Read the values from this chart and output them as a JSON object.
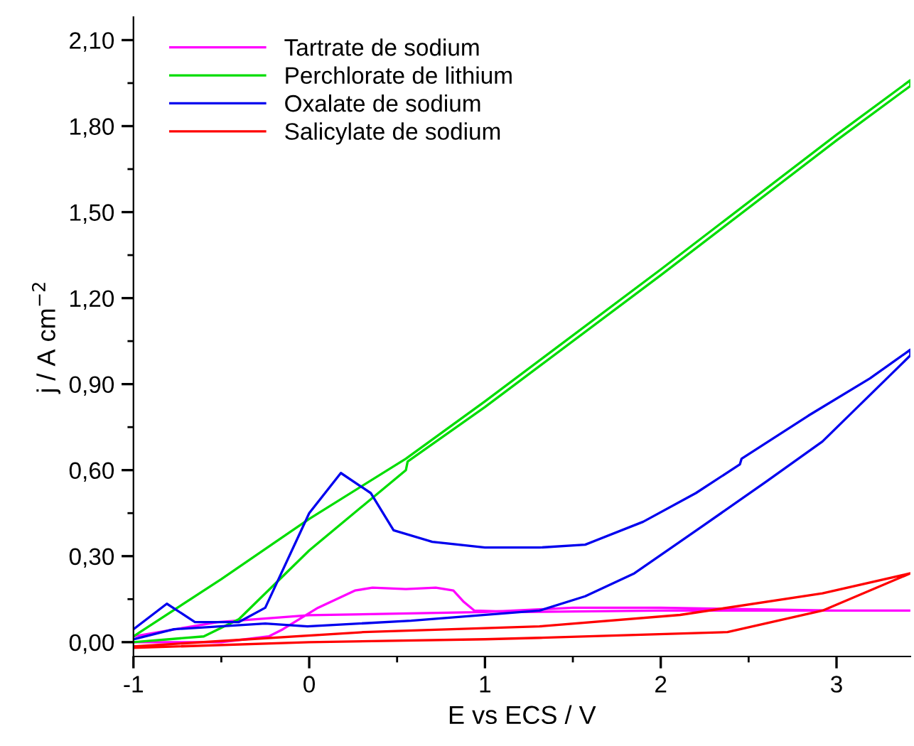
{
  "chart_data": {
    "type": "line",
    "xlabel": "E vs ECS / V",
    "ylabel": "j / A cm$^{−2}$",
    "xlim": [
      -1,
      3.42
    ],
    "ylim": [
      -0.05,
      2.18
    ],
    "xticks": [
      -1,
      0,
      1,
      2,
      3
    ],
    "yticks": [
      {
        "value": 0,
        "label": "0,00"
      },
      {
        "value": 0.3,
        "label": "0,30"
      },
      {
        "value": 0.6,
        "label": "0,60"
      },
      {
        "value": 0.9,
        "label": "0,90"
      },
      {
        "value": 1.2,
        "label": "1,20"
      },
      {
        "value": 1.5,
        "label": "1,50"
      },
      {
        "value": 1.8,
        "label": "1,80"
      },
      {
        "value": 2.1,
        "label": "2,10"
      }
    ],
    "grid": false,
    "legend": "top left",
    "marker": "none",
    "line_style": "solid",
    "series": [
      {
        "name": "Tartrate de sodium",
        "color": "#ff00ff",
        "x": [
          -1,
          -0.5,
          -0.23,
          -0.15,
          0.05,
          0.26,
          0.36,
          0.55,
          0.72,
          0.82,
          0.88,
          0.94,
          1.2,
          2,
          3,
          3.42,
          3.42,
          3,
          2,
          1.5,
          1,
          0,
          -0.52,
          -1
        ],
        "values": [
          0,
          0,
          0.02,
          0.045,
          0.12,
          0.18,
          0.19,
          0.185,
          0.19,
          0.18,
          0.14,
          0.11,
          0.105,
          0.11,
          0.11,
          0.11,
          0.11,
          0.11,
          0.12,
          0.12,
          0.105,
          0.094,
          0.07,
          0.02
        ]
      },
      {
        "name": "Perchlorate de lithium",
        "color": "#00dd00",
        "x": [
          -1,
          -0.6,
          -0.4,
          0,
          0.55,
          0.56,
          1,
          2,
          3,
          3.42,
          3.42,
          3,
          2,
          1,
          0.55,
          0,
          -0.5,
          -1
        ],
        "values": [
          0,
          0.02,
          0.08,
          0.32,
          0.6,
          0.63,
          0.82,
          1.28,
          1.75,
          1.94,
          1.96,
          1.77,
          1.3,
          0.84,
          0.64,
          0.43,
          0.22,
          0.02
        ]
      },
      {
        "name": "Oxalate de sodium",
        "color": "#0000ee",
        "x": [
          -1,
          -0.81,
          -0.65,
          -0.4,
          -0.25,
          0,
          0.18,
          0.35,
          0.48,
          0.7,
          1,
          1.31,
          1.57,
          1.9,
          2.2,
          2.45,
          2.46,
          2.84,
          3.19,
          3.42,
          3.42,
          3.27,
          2.92,
          2.6,
          2.25,
          1.85,
          1.57,
          1.31,
          0.58,
          -0.01,
          -0.25,
          -0.77,
          -1
        ],
        "values": [
          0.045,
          0.134,
          0.07,
          0.07,
          0.12,
          0.45,
          0.59,
          0.52,
          0.39,
          0.35,
          0.33,
          0.33,
          0.34,
          0.42,
          0.52,
          0.62,
          0.64,
          0.79,
          0.92,
          1.02,
          1.0,
          0.91,
          0.7,
          0.56,
          0.41,
          0.24,
          0.16,
          0.11,
          0.075,
          0.055,
          0.065,
          0.045,
          0.01
        ]
      },
      {
        "name": "Salicylate de sodium",
        "color": "#ff0000",
        "x": [
          -1,
          0,
          1,
          1.31,
          2.38,
          2.92,
          3.42,
          3.42,
          2.92,
          2.11,
          1.31,
          0.31,
          -1
        ],
        "values": [
          -0.02,
          0,
          0.01,
          0.015,
          0.035,
          0.11,
          0.24,
          0.24,
          0.17,
          0.095,
          0.055,
          0.035,
          -0.015
        ]
      }
    ]
  }
}
